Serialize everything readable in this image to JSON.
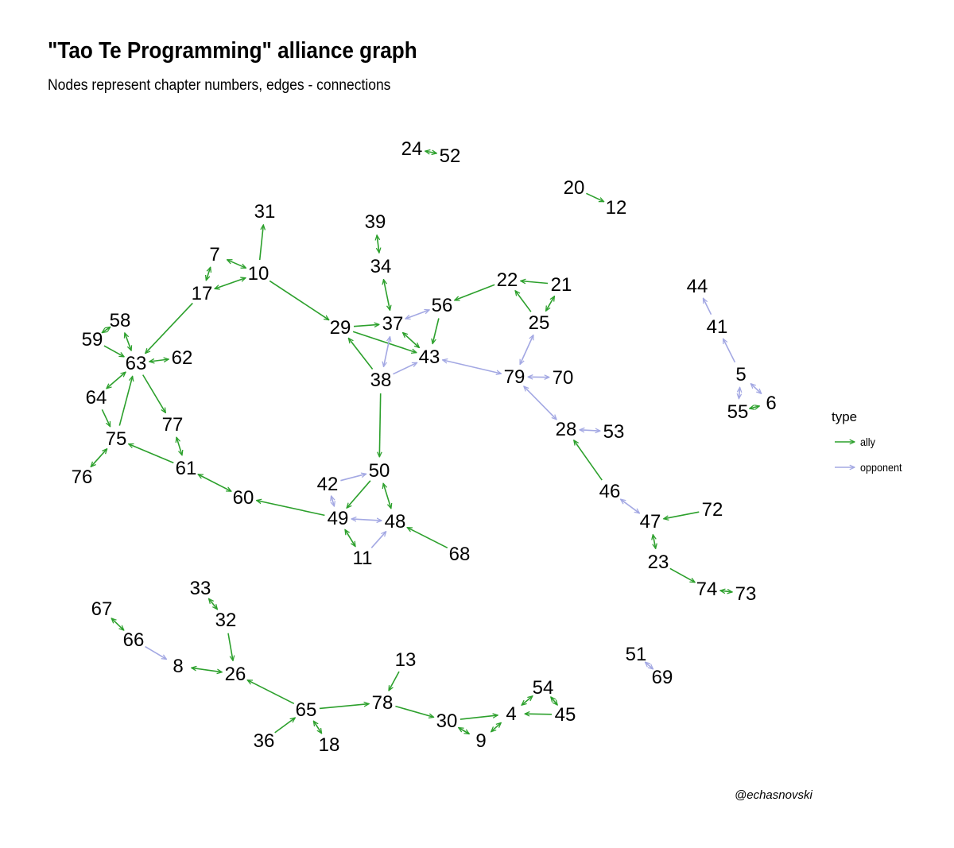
{
  "title": "\"Tao Te Programming\" alliance graph",
  "subtitle": "Nodes represent chapter numbers, edges - connections",
  "caption": "@echasnovski",
  "legend": {
    "title": "type",
    "items": [
      {
        "label": "ally",
        "color": "#2ca02c"
      },
      {
        "label": "opponent",
        "color": "#a3a8e3"
      }
    ]
  },
  "nodes": [
    "24",
    "52",
    "20",
    "12",
    "31",
    "39",
    "7",
    "10",
    "34",
    "22",
    "21",
    "17",
    "56",
    "58",
    "29",
    "37",
    "25",
    "59",
    "43",
    "63",
    "62",
    "38",
    "79",
    "70",
    "64",
    "77",
    "28",
    "53",
    "75",
    "61",
    "76",
    "50",
    "42",
    "60",
    "46",
    "49",
    "48",
    "47",
    "72",
    "11",
    "68",
    "23",
    "74",
    "73",
    "33",
    "67",
    "32",
    "66",
    "51",
    "13",
    "8",
    "26",
    "69",
    "54",
    "65",
    "78",
    "45",
    "4",
    "30",
    "36",
    "18",
    "9",
    "44",
    "41",
    "5",
    "6",
    "55"
  ]
}
